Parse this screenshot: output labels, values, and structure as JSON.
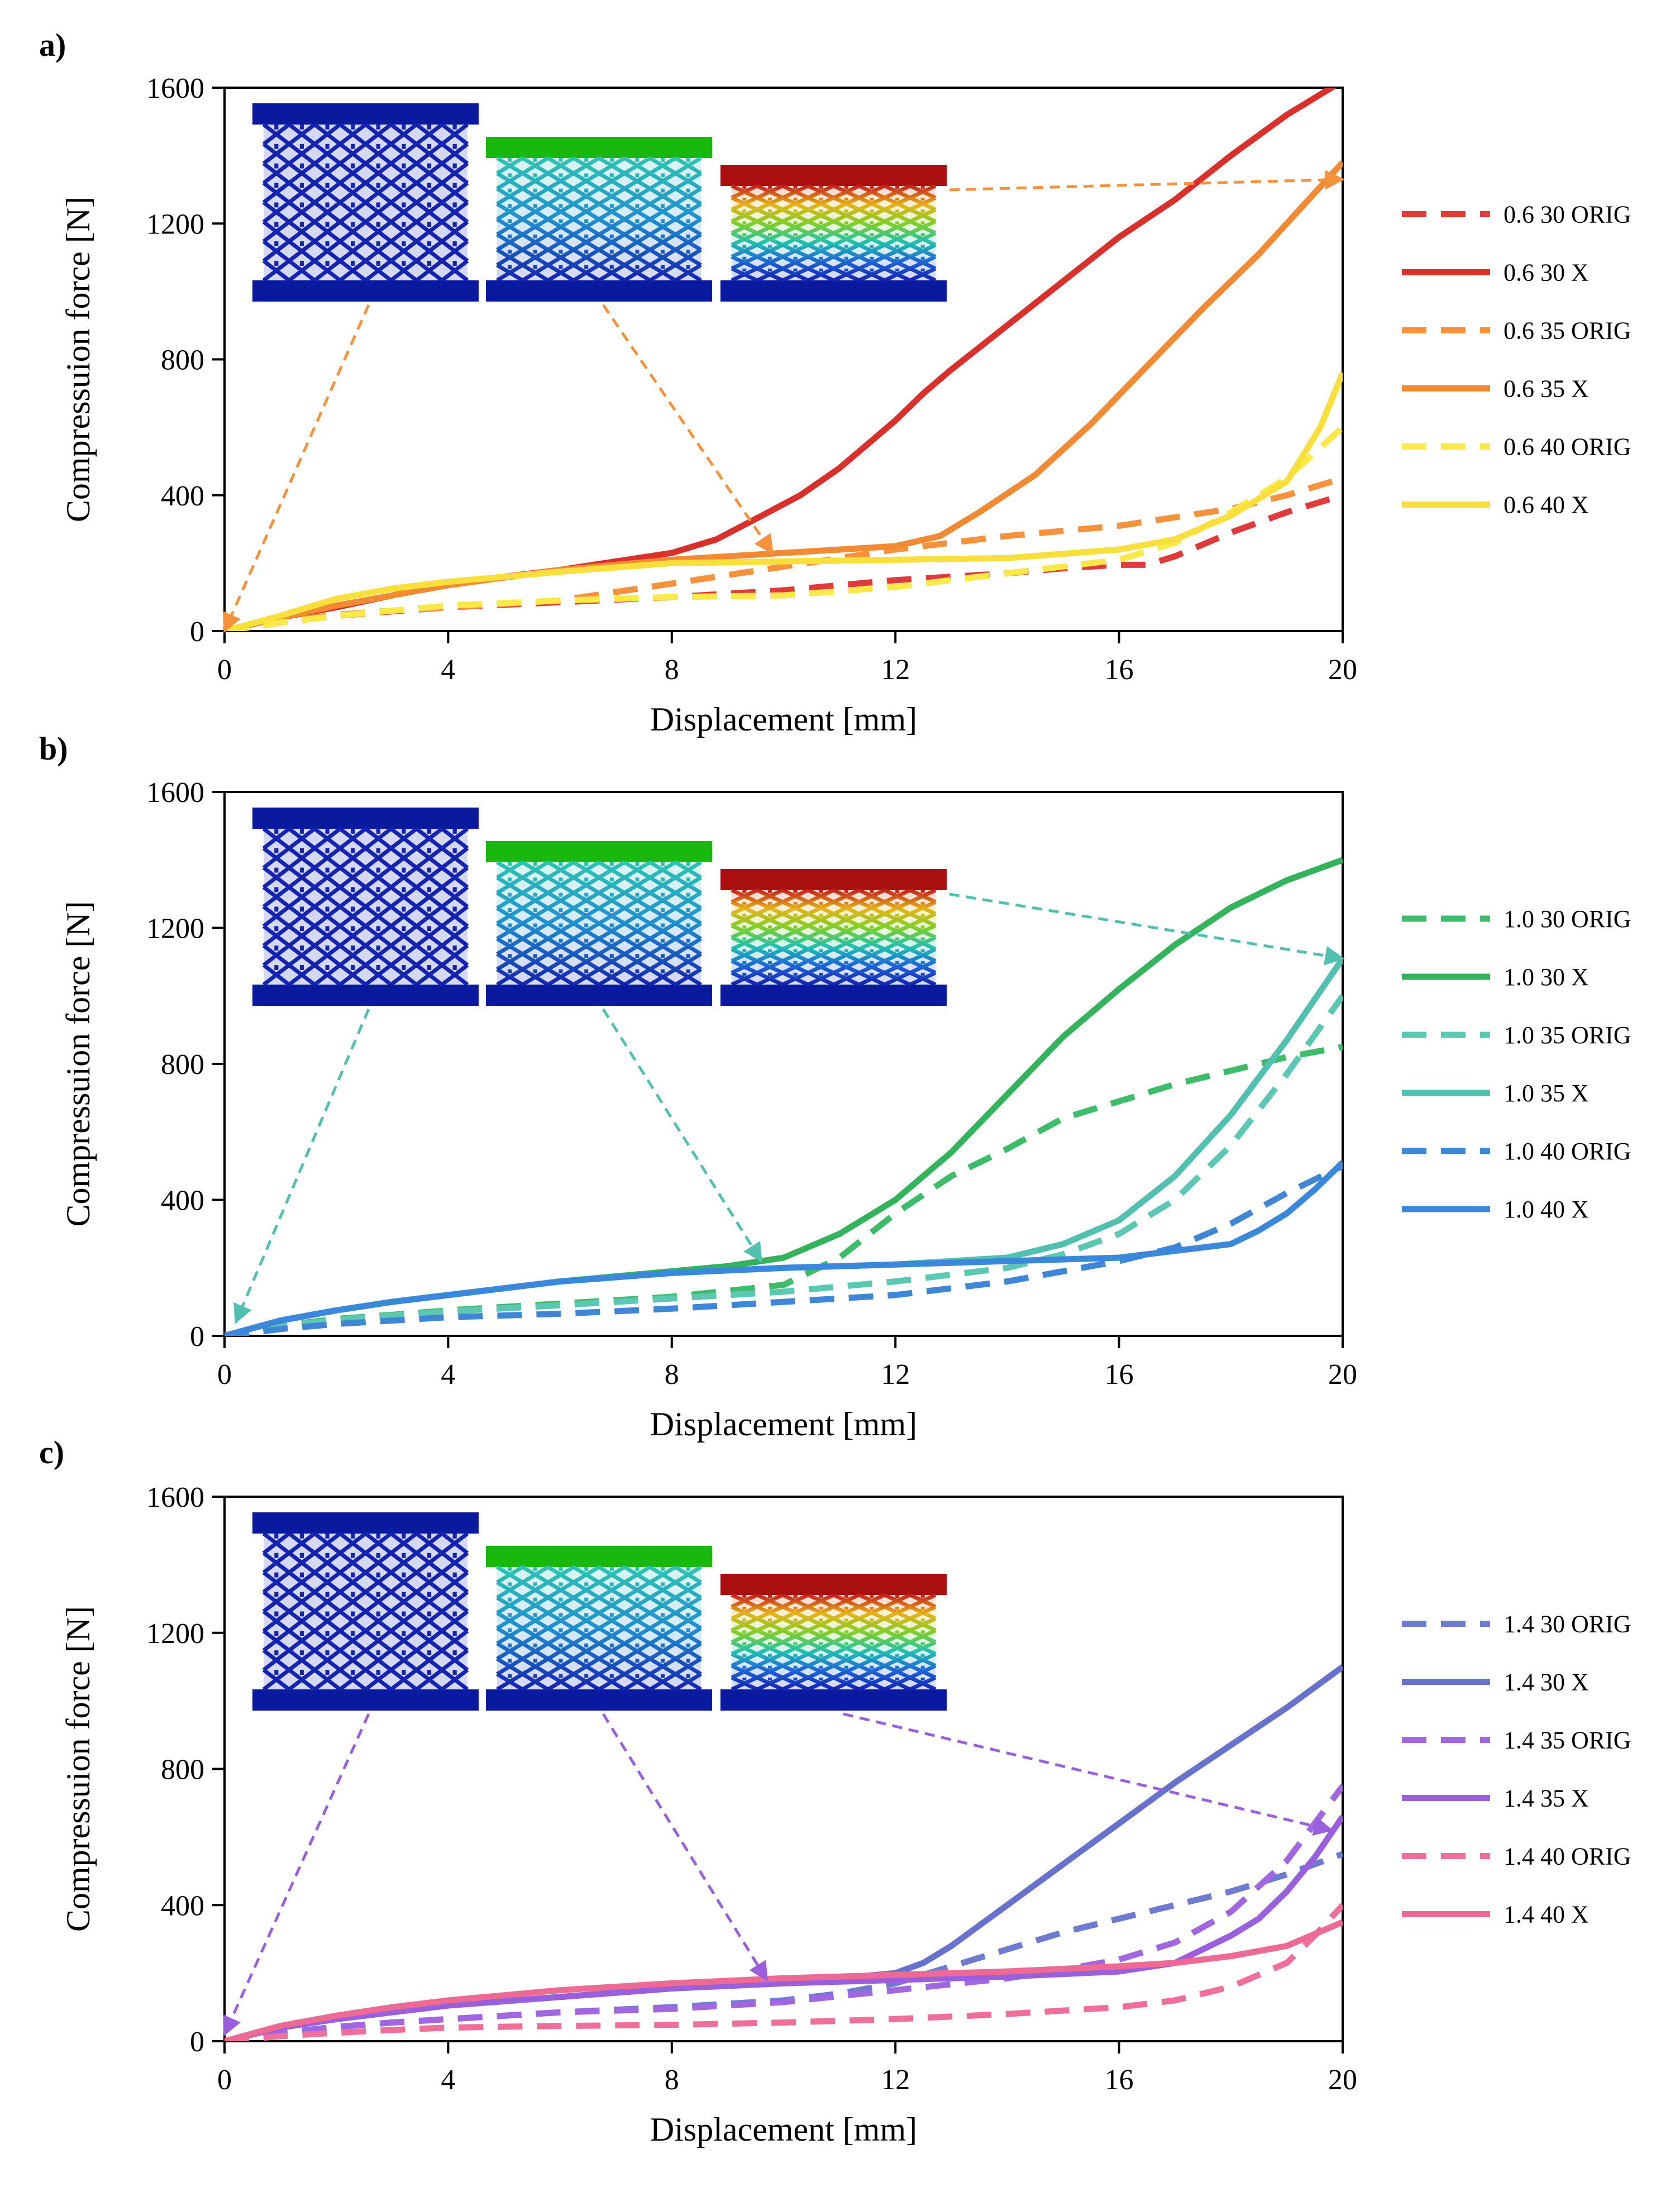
{
  "chart_data": [
    {
      "type": "line",
      "panel_label": "a)",
      "xlabel": "Displacement [mm]",
      "ylabel": "Compressuion force [N]",
      "xlim": [
        0,
        20
      ],
      "ylim": [
        0,
        1600
      ],
      "xticks": [
        "0",
        "4",
        "8",
        "12",
        "16",
        "20"
      ],
      "yticks": [
        "0",
        "400",
        "800",
        "1200",
        "1600"
      ],
      "grid": false,
      "legend_position": "right",
      "inset": "three lattice compression snapshots (undeformed, partially compressed, fully compressed) with arrows pointing to displacements 0, 9.8 and 20 mm",
      "series": [
        {
          "name": "0.6 30 ORIG",
          "color": "#e03a3a",
          "dash": true,
          "x": [
            0,
            1,
            2,
            3,
            4,
            6,
            8,
            10,
            12,
            14,
            15,
            16,
            16.5,
            17,
            18,
            19,
            20
          ],
          "y": [
            0,
            25,
            45,
            58,
            70,
            85,
            100,
            120,
            150,
            170,
            185,
            195,
            195,
            220,
            290,
            350,
            400
          ]
        },
        {
          "name": "0.6 30 X",
          "color": "#d9302c",
          "dash": false,
          "x": [
            0,
            1,
            2,
            3,
            4,
            6,
            8,
            8.8,
            9.5,
            10.3,
            11,
            12,
            12.5,
            13,
            14,
            15,
            16,
            17,
            18,
            19,
            20
          ],
          "y": [
            0,
            40,
            70,
            105,
            140,
            180,
            230,
            270,
            330,
            400,
            480,
            620,
            700,
            770,
            900,
            1030,
            1160,
            1270,
            1400,
            1520,
            1620
          ]
        },
        {
          "name": "0.6 35 ORIG",
          "color": "#f5923b",
          "dash": true,
          "x": [
            0,
            1,
            2,
            3,
            4,
            6,
            8,
            10,
            12,
            14,
            16,
            18,
            19,
            20
          ],
          "y": [
            0,
            28,
            48,
            60,
            70,
            90,
            140,
            190,
            240,
            280,
            310,
            360,
            400,
            450
          ]
        },
        {
          "name": "0.6 35 X",
          "color": "#f18a32",
          "dash": false,
          "x": [
            0,
            1,
            2,
            3,
            4,
            6,
            8,
            10,
            12,
            12.8,
            13.5,
            14.5,
            15.5,
            16.5,
            17.5,
            18.5,
            19.5,
            20
          ],
          "y": [
            0,
            40,
            75,
            105,
            135,
            180,
            210,
            230,
            250,
            280,
            350,
            460,
            610,
            780,
            950,
            1110,
            1290,
            1380
          ]
        },
        {
          "name": "0.6 40 ORIG",
          "color": "#fbe94a",
          "dash": true,
          "x": [
            0,
            1,
            2,
            3,
            4,
            6,
            8,
            10,
            12,
            14,
            16,
            17,
            18,
            19,
            20
          ],
          "y": [
            0,
            25,
            45,
            60,
            75,
            90,
            100,
            105,
            130,
            170,
            210,
            260,
            350,
            450,
            600
          ]
        },
        {
          "name": "0.6 40 X",
          "color": "#f8df3c",
          "dash": false,
          "x": [
            0,
            1,
            2,
            3,
            4,
            6,
            8,
            10,
            12,
            14,
            16,
            17,
            18,
            19,
            19.6,
            20
          ],
          "y": [
            0,
            45,
            95,
            125,
            145,
            175,
            200,
            205,
            210,
            215,
            240,
            270,
            340,
            440,
            600,
            760
          ]
        }
      ]
    },
    {
      "type": "line",
      "panel_label": "b)",
      "xlabel": "Displacement [mm]",
      "ylabel": "Compressuion force [N]",
      "xlim": [
        0,
        20
      ],
      "ylim": [
        0,
        1600
      ],
      "xticks": [
        "0",
        "4",
        "8",
        "12",
        "16",
        "20"
      ],
      "yticks": [
        "0",
        "400",
        "800",
        "1200",
        "1600"
      ],
      "grid": false,
      "legend_position": "right",
      "inset": "three lattice compression snapshots with arrows pointing to displacements 0.2, 9.6 and 20 mm",
      "series": [
        {
          "name": "1.0 30 ORIG",
          "color": "#3dbd6a",
          "dash": true,
          "x": [
            0,
            1,
            2,
            3,
            4,
            6,
            8,
            10,
            11,
            12,
            13,
            14,
            15,
            16,
            17,
            18,
            19,
            20
          ],
          "y": [
            0,
            30,
            50,
            62,
            75,
            95,
            115,
            150,
            230,
            360,
            470,
            550,
            640,
            690,
            740,
            780,
            820,
            850
          ]
        },
        {
          "name": "1.0 30 X",
          "color": "#33b35c",
          "dash": false,
          "x": [
            0,
            1,
            2,
            3,
            4,
            6,
            8,
            9,
            10,
            11,
            12,
            13,
            14,
            15,
            16,
            17,
            18,
            19,
            20
          ],
          "y": [
            0,
            45,
            75,
            100,
            120,
            160,
            190,
            205,
            230,
            300,
            400,
            540,
            710,
            880,
            1020,
            1150,
            1260,
            1340,
            1400
          ]
        },
        {
          "name": "1.0 35 ORIG",
          "color": "#5cc8b4",
          "dash": true,
          "x": [
            0,
            1,
            2,
            3,
            4,
            6,
            8,
            10,
            12,
            14,
            15,
            16,
            17,
            18,
            19,
            20
          ],
          "y": [
            0,
            28,
            48,
            60,
            72,
            90,
            110,
            130,
            160,
            200,
            240,
            300,
            400,
            560,
            770,
            1000
          ]
        },
        {
          "name": "1.0 35 X",
          "color": "#52c0b0",
          "dash": false,
          "x": [
            0,
            1,
            2,
            3,
            4,
            6,
            8,
            10,
            12,
            14,
            15,
            16,
            17,
            18,
            19,
            20
          ],
          "y": [
            0,
            45,
            75,
            100,
            120,
            160,
            185,
            200,
            210,
            230,
            270,
            340,
            470,
            650,
            870,
            1110
          ]
        },
        {
          "name": "1.0 40 ORIG",
          "color": "#3f86d6",
          "dash": true,
          "x": [
            0,
            1,
            2,
            3,
            4,
            6,
            8,
            10,
            12,
            14,
            16,
            17,
            18,
            19,
            20
          ],
          "y": [
            0,
            20,
            35,
            45,
            55,
            65,
            80,
            100,
            120,
            160,
            220,
            260,
            330,
            420,
            500
          ]
        },
        {
          "name": "1.0 40 X",
          "color": "#3a88dc",
          "dash": false,
          "x": [
            0,
            1,
            2,
            3,
            4,
            6,
            8,
            10,
            12,
            14,
            16,
            17,
            18,
            18.5,
            19,
            19.5,
            20
          ],
          "y": [
            0,
            45,
            75,
            100,
            120,
            160,
            185,
            200,
            210,
            220,
            230,
            250,
            270,
            310,
            360,
            430,
            510
          ]
        }
      ]
    },
    {
      "type": "line",
      "panel_label": "c)",
      "xlabel": "Displacement [mm]",
      "ylabel": "Compressuion force [N]",
      "xlim": [
        0,
        20
      ],
      "ylim": [
        0,
        1600
      ],
      "xticks": [
        "0",
        "4",
        "8",
        "12",
        "16",
        "20"
      ],
      "yticks": [
        "0",
        "400",
        "800",
        "1200",
        "1600"
      ],
      "grid": false,
      "legend_position": "right",
      "inset": "three lattice compression snapshots with arrows pointing to displacements 0, 9.7 and 19.8 mm",
      "series": [
        {
          "name": "1.4 30 ORIG",
          "color": "#6f7bd0",
          "dash": true,
          "x": [
            0,
            1,
            2,
            3,
            4,
            6,
            8,
            10,
            11,
            12,
            13,
            14,
            15,
            16,
            17,
            18,
            19,
            20
          ],
          "y": [
            0,
            25,
            42,
            55,
            65,
            85,
            100,
            120,
            140,
            170,
            220,
            270,
            320,
            360,
            400,
            440,
            490,
            550
          ]
        },
        {
          "name": "1.4 30 X",
          "color": "#6672cc",
          "dash": false,
          "x": [
            0,
            1,
            2,
            3,
            4,
            6,
            8,
            10,
            11,
            12,
            12.5,
            13,
            14,
            15,
            16,
            17,
            18,
            19,
            20
          ],
          "y": [
            0,
            40,
            65,
            85,
            105,
            130,
            155,
            175,
            185,
            200,
            230,
            280,
            400,
            520,
            640,
            760,
            870,
            980,
            1100
          ]
        },
        {
          "name": "1.4 35 ORIG",
          "color": "#a266e0",
          "dash": true,
          "x": [
            0,
            1,
            2,
            3,
            4,
            6,
            8,
            10,
            12,
            14,
            15,
            16,
            17,
            18,
            19,
            20
          ],
          "y": [
            0,
            25,
            42,
            55,
            65,
            85,
            95,
            115,
            150,
            185,
            210,
            240,
            290,
            380,
            530,
            750
          ]
        },
        {
          "name": "1.4 35 X",
          "color": "#9a5fdc",
          "dash": false,
          "x": [
            0,
            1,
            2,
            3,
            4,
            6,
            8,
            10,
            12,
            14,
            16,
            17,
            18,
            18.5,
            19,
            19.5,
            20
          ],
          "y": [
            0,
            40,
            65,
            85,
            105,
            130,
            155,
            170,
            180,
            190,
            205,
            230,
            310,
            360,
            440,
            540,
            660
          ]
        },
        {
          "name": "1.4 40 ORIG",
          "color": "#ef6f9a",
          "dash": true,
          "x": [
            0,
            1,
            2,
            3,
            4,
            6,
            8,
            10,
            12,
            14,
            16,
            17,
            18,
            19,
            19.5,
            20
          ],
          "y": [
            0,
            15,
            25,
            33,
            40,
            45,
            48,
            55,
            65,
            80,
            100,
            120,
            160,
            230,
            310,
            400
          ]
        },
        {
          "name": "1.4 40 X",
          "color": "#ec6a94",
          "dash": false,
          "x": [
            0,
            1,
            2,
            3,
            4,
            6,
            8,
            10,
            12,
            14,
            16,
            17,
            18,
            19,
            20
          ],
          "y": [
            0,
            45,
            75,
            100,
            120,
            150,
            170,
            185,
            195,
            205,
            220,
            230,
            250,
            280,
            350
          ]
        }
      ]
    }
  ]
}
